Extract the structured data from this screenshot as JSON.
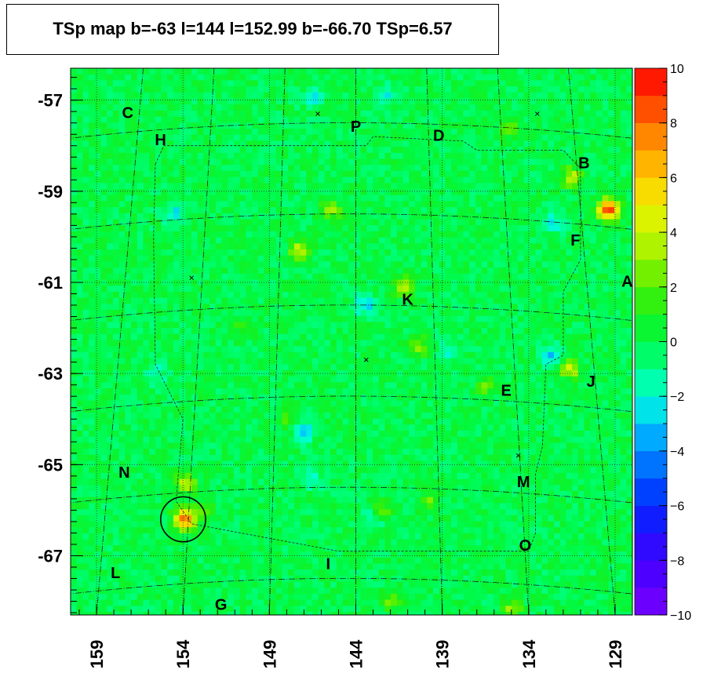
{
  "title": "TSp map b=-63 l=144 l=152.99 b=-66.70 TSp=6.57",
  "chart_data": {
    "type": "heatmap",
    "colormap": "rainbow (violet → blue → cyan → green → yellow → orange → red)",
    "background_level": 0,
    "x_ticks": [
      "159",
      "154",
      "149",
      "144",
      "139",
      "134",
      "129"
    ],
    "x_tick_values": [
      159,
      154,
      149,
      144,
      139,
      134,
      129
    ],
    "xlim": [
      160.5,
      128.0
    ],
    "y_ticks": [
      "-57",
      "-59",
      "-61",
      "-63",
      "-65",
      "-67"
    ],
    "y_tick_values": [
      -57,
      -59,
      -61,
      -63,
      -65,
      -67
    ],
    "ylim": [
      -68.3,
      -56.3
    ],
    "colorbar_ticks": [
      "10",
      "8",
      "6",
      "4",
      "2",
      "0",
      "−2",
      "−4",
      "−6",
      "−8",
      "−10"
    ],
    "colorbar_values": [
      10,
      8,
      6,
      4,
      2,
      0,
      -2,
      -4,
      -6,
      -8,
      -10
    ],
    "zlim": [
      -10,
      10
    ],
    "region_labels": [
      {
        "text": "C",
        "l": 157.2,
        "b": -57.3
      },
      {
        "text": "H",
        "l": 155.3,
        "b": -57.9
      },
      {
        "text": "P",
        "l": 144.0,
        "b": -57.6
      },
      {
        "text": "D",
        "l": 139.2,
        "b": -57.8
      },
      {
        "text": "B",
        "l": 130.8,
        "b": -58.4
      },
      {
        "text": "F",
        "l": 131.3,
        "b": -60.1
      },
      {
        "text": "A",
        "l": 128.3,
        "b": -61.0
      },
      {
        "text": "K",
        "l": 141.0,
        "b": -61.4
      },
      {
        "text": "E",
        "l": 135.3,
        "b": -63.4
      },
      {
        "text": "J",
        "l": 130.4,
        "b": -63.2
      },
      {
        "text": "N",
        "l": 157.4,
        "b": -65.2
      },
      {
        "text": "M",
        "l": 134.3,
        "b": -65.4
      },
      {
        "text": "O",
        "l": 134.2,
        "b": -66.8
      },
      {
        "text": "L",
        "l": 157.9,
        "b": -67.4
      },
      {
        "text": "I",
        "l": 145.6,
        "b": -67.2
      },
      {
        "text": "G",
        "l": 151.8,
        "b": -68.1
      }
    ],
    "hotspots": [
      {
        "l": 129.4,
        "b": -59.4,
        "ts": 9.5
      },
      {
        "l": 153.9,
        "b": -66.2,
        "ts": 8.5
      },
      {
        "l": 131.5,
        "b": -58.7,
        "ts": 4
      },
      {
        "l": 131.6,
        "b": -62.9,
        "ts": 4
      },
      {
        "l": 147.2,
        "b": -60.3,
        "ts": 4
      },
      {
        "l": 141.2,
        "b": -61.1,
        "ts": 3.5
      },
      {
        "l": 153.8,
        "b": -65.4,
        "ts": 3.5
      },
      {
        "l": 145.4,
        "b": -59.4,
        "ts": 2.8
      },
      {
        "l": 140.4,
        "b": -62.4,
        "ts": 2.8
      },
      {
        "l": 135.1,
        "b": -57.6,
        "ts": 2.5
      },
      {
        "l": 142.5,
        "b": -66.0,
        "ts": 2.5
      },
      {
        "l": 139.8,
        "b": -65.8,
        "ts": 2.2
      },
      {
        "l": 136.5,
        "b": -63.3,
        "ts": 2.0
      },
      {
        "l": 135.0,
        "b": -68.2,
        "ts": 3.0
      },
      {
        "l": 148.0,
        "b": -64.0,
        "ts": 1.8
      },
      {
        "l": 152.8,
        "b": -66.0,
        "ts": 2.5
      },
      {
        "l": 142.0,
        "b": -68.0,
        "ts": 2.0
      },
      {
        "l": 150.5,
        "b": -62.0,
        "ts": 1.8
      },
      {
        "l": 142.2,
        "b": -56.9,
        "ts": -2.0
      },
      {
        "l": 146.4,
        "b": -56.9,
        "ts": -2.5
      },
      {
        "l": 154.5,
        "b": -59.5,
        "ts": -2.5
      },
      {
        "l": 143.5,
        "b": -61.5,
        "ts": -3.0
      },
      {
        "l": 147.0,
        "b": -64.3,
        "ts": -3.0
      },
      {
        "l": 132.5,
        "b": -59.7,
        "ts": -2.5
      },
      {
        "l": 138.5,
        "b": -62.5,
        "ts": -2.0
      },
      {
        "l": 143.0,
        "b": -66.2,
        "ts": -2.0
      },
      {
        "l": 132.8,
        "b": -62.6,
        "ts": -3.0
      },
      {
        "l": 146.6,
        "b": -65.3,
        "ts": -2.2
      },
      {
        "l": 155.5,
        "b": -63.0,
        "ts": -1.8
      }
    ],
    "circle_marker": {
      "l": 153.99,
      "b": -66.2,
      "radius_deg": 0.5
    },
    "cross_markers": [
      {
        "l": 146.2,
        "b": -57.3
      },
      {
        "l": 133.5,
        "b": -57.3
      },
      {
        "l": 153.5,
        "b": -60.9
      },
      {
        "l": 143.4,
        "b": -62.7
      },
      {
        "l": 134.6,
        "b": -64.8
      }
    ]
  }
}
